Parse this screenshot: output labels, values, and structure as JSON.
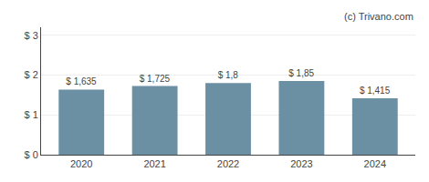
{
  "chart_data": {
    "type": "bar",
    "categories": [
      "2020",
      "2021",
      "2022",
      "2023",
      "2024"
    ],
    "values": [
      1.635,
      1.725,
      1.8,
      1.85,
      1.415
    ],
    "value_labels": [
      "$ 1,635",
      "$ 1,725",
      "$ 1,8",
      "$ 1,85",
      "$ 1,415"
    ],
    "data_labels": true,
    "color": "#6b8fa3",
    "ylim": [
      0,
      3.2
    ],
    "yticks": [
      {
        "value": 0,
        "label": "$ 0"
      },
      {
        "value": 1,
        "label": "$ 1"
      },
      {
        "value": 2,
        "label": "$ 2"
      },
      {
        "value": 3,
        "label": "$ 3"
      }
    ],
    "grid": true,
    "annotations": [
      "(c) Trivano.com"
    ]
  }
}
